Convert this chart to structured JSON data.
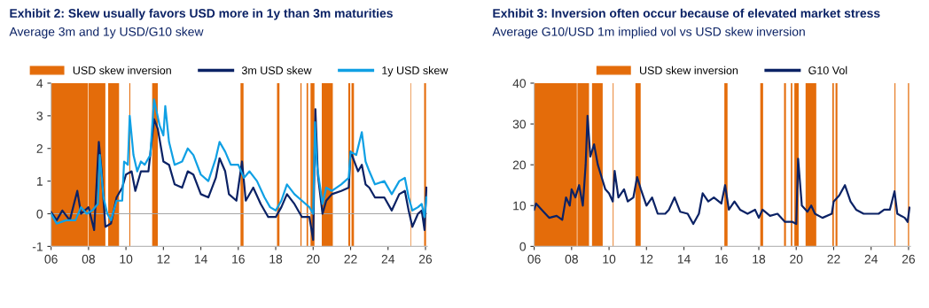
{
  "chart_data": [
    {
      "type": "line",
      "title": "Exhibit 2: Skew usually favors USD more in 1y than 3m maturities",
      "subtitle": "Average 3m and 1y USD/G10 skew",
      "xlim": [
        2006,
        2026.1
      ],
      "xticks": [
        {
          "value": 2006,
          "label": "06"
        },
        {
          "value": 2008,
          "label": "08"
        },
        {
          "value": 2010,
          "label": "10"
        },
        {
          "value": 2012,
          "label": "12"
        },
        {
          "value": 2014,
          "label": "14"
        },
        {
          "value": 2016,
          "label": "16"
        },
        {
          "value": 2018,
          "label": "18"
        },
        {
          "value": 2020,
          "label": "20"
        },
        {
          "value": 2022,
          "label": "22"
        },
        {
          "value": 2024,
          "label": "24"
        },
        {
          "value": 2026,
          "label": "26"
        }
      ],
      "ylim": [
        -1,
        4
      ],
      "yticks": [
        -1,
        0,
        1,
        2,
        3,
        4
      ],
      "grid": false,
      "legend": "top",
      "bands": [
        {
          "axis": "x",
          "from": 2006.0,
          "to": 2007.97,
          "label": "USD skew inversion",
          "color": "#e46c0a"
        },
        {
          "axis": "x",
          "from": 2008.0,
          "to": 2008.9,
          "color": "#e46c0a"
        },
        {
          "axis": "x",
          "from": 2009.05,
          "to": 2009.63,
          "color": "#e46c0a"
        },
        {
          "axis": "x",
          "from": 2010.18,
          "to": 2010.23,
          "color": "#e46c0a"
        },
        {
          "axis": "x",
          "from": 2011.4,
          "to": 2011.7,
          "color": "#e46c0a"
        },
        {
          "axis": "x",
          "from": 2016.12,
          "to": 2016.28,
          "color": "#e46c0a"
        },
        {
          "axis": "x",
          "from": 2018.07,
          "to": 2018.2,
          "color": "#e46c0a"
        },
        {
          "axis": "x",
          "from": 2019.32,
          "to": 2019.38,
          "color": "#e46c0a"
        },
        {
          "axis": "x",
          "from": 2019.65,
          "to": 2019.73,
          "color": "#e46c0a"
        },
        {
          "axis": "x",
          "from": 2019.86,
          "to": 2020.07,
          "color": "#e46c0a"
        },
        {
          "axis": "x",
          "from": 2020.46,
          "to": 2021.05,
          "color": "#e46c0a"
        },
        {
          "axis": "x",
          "from": 2021.88,
          "to": 2021.98,
          "color": "#e46c0a"
        },
        {
          "axis": "x",
          "from": 2022.05,
          "to": 2022.18,
          "color": "#e46c0a"
        },
        {
          "axis": "x",
          "from": 2025.2,
          "to": 2025.23,
          "color": "#e46c0a"
        },
        {
          "axis": "x",
          "from": 2025.93,
          "to": 2026.03,
          "color": "#e46c0a"
        }
      ],
      "ref_lines": [
        {
          "axis": "y",
          "value": 0,
          "color": "#a6a6a6"
        }
      ],
      "series": [
        {
          "name": "3m USD skew",
          "color": "#0b2265",
          "x": [
            2006.0,
            2006.3,
            2006.6,
            2007.0,
            2007.4,
            2007.6,
            2008.0,
            2008.3,
            2008.55,
            2008.7,
            2008.9,
            2009.2,
            2009.5,
            2009.8,
            2010.0,
            2010.3,
            2010.5,
            2010.8,
            2011.2,
            2011.5,
            2011.7,
            2012.0,
            2012.3,
            2012.6,
            2013.0,
            2013.3,
            2013.6,
            2014.0,
            2014.4,
            2014.8,
            2015.0,
            2015.3,
            2015.5,
            2015.9,
            2016.2,
            2016.4,
            2016.8,
            2017.2,
            2017.6,
            2018.0,
            2018.3,
            2018.6,
            2019.0,
            2019.4,
            2019.8,
            2020.0,
            2020.12,
            2020.25,
            2020.5,
            2020.7,
            2021.0,
            2021.5,
            2021.9,
            2022.0,
            2022.4,
            2022.6,
            2022.8,
            2023.0,
            2023.3,
            2023.8,
            2024.2,
            2024.6,
            2024.9,
            2025.1,
            2025.3,
            2025.6,
            2025.8,
            2025.95,
            2026.05
          ],
          "values": [
            0.05,
            -0.2,
            0.1,
            -0.2,
            0.7,
            0.0,
            0.2,
            -0.5,
            2.2,
            1.3,
            -0.4,
            -0.3,
            0.5,
            0.8,
            1.2,
            1.3,
            0.7,
            1.3,
            1.3,
            2.9,
            2.6,
            1.6,
            1.5,
            0.9,
            0.8,
            1.3,
            1.2,
            0.6,
            0.5,
            1.1,
            1.7,
            1.3,
            0.6,
            0.4,
            1.6,
            0.4,
            0.8,
            0.3,
            -0.1,
            -0.1,
            0.2,
            0.6,
            0.3,
            -0.1,
            -0.1,
            -0.8,
            3.2,
            1.2,
            0.0,
            0.4,
            0.6,
            0.7,
            0.8,
            1.9,
            1.3,
            1.5,
            0.9,
            0.8,
            0.5,
            0.5,
            0.1,
            0.6,
            0.7,
            0.1,
            -0.4,
            0.0,
            0.1,
            -0.5,
            0.8
          ]
        },
        {
          "name": "1y USD skew",
          "color": "#10a0e4",
          "x": [
            2006.0,
            2006.3,
            2006.8,
            2007.3,
            2007.6,
            2007.9,
            2008.2,
            2008.5,
            2008.6,
            2008.8,
            2009.0,
            2009.2,
            2009.5,
            2009.8,
            2009.9,
            2010.1,
            2010.2,
            2010.4,
            2010.6,
            2010.8,
            2011.0,
            2011.3,
            2011.5,
            2011.8,
            2012.0,
            2012.1,
            2012.3,
            2012.6,
            2013.0,
            2013.3,
            2013.6,
            2014.0,
            2014.4,
            2014.8,
            2015.0,
            2015.3,
            2015.6,
            2016.0,
            2016.3,
            2016.6,
            2017.0,
            2017.4,
            2017.7,
            2018.0,
            2018.3,
            2018.6,
            2019.0,
            2019.4,
            2019.8,
            2020.0,
            2020.1,
            2020.2,
            2020.5,
            2020.7,
            2021.0,
            2021.5,
            2021.9,
            2022.0,
            2022.3,
            2022.6,
            2022.8,
            2023.0,
            2023.3,
            2023.8,
            2024.2,
            2024.6,
            2024.9,
            2025.1,
            2025.3,
            2025.6,
            2025.8,
            2025.95,
            2026.05
          ],
          "values": [
            0.0,
            -0.3,
            -0.2,
            -0.2,
            0.2,
            0.0,
            0.1,
            0.3,
            1.8,
            0.5,
            0.0,
            -0.2,
            0.4,
            0.4,
            1.6,
            1.5,
            3.0,
            1.8,
            1.3,
            1.6,
            1.5,
            1.8,
            3.5,
            2.7,
            2.4,
            3.3,
            2.2,
            1.5,
            1.6,
            2.0,
            1.8,
            1.2,
            1.0,
            1.7,
            2.2,
            1.9,
            1.5,
            1.5,
            1.1,
            1.3,
            1.0,
            0.5,
            0.2,
            0.1,
            0.4,
            0.9,
            0.6,
            0.4,
            0.2,
            0.0,
            2.8,
            1.5,
            0.3,
            0.8,
            0.7,
            0.9,
            1.1,
            1.9,
            1.8,
            2.5,
            1.6,
            1.3,
            0.9,
            1.0,
            0.6,
            1.0,
            1.1,
            0.5,
            0.1,
            0.2,
            0.3,
            -0.1,
            0.5
          ]
        }
      ]
    },
    {
      "type": "line",
      "title": "Exhibit 3: Inversion often occur because of elevated market stress",
      "subtitle": "Average G10/USD 1m implied vol vs USD skew inversion",
      "xlim": [
        2006,
        2026.1
      ],
      "xticks": [
        {
          "value": 2006,
          "label": "06"
        },
        {
          "value": 2008,
          "label": "08"
        },
        {
          "value": 2010,
          "label": "10"
        },
        {
          "value": 2012,
          "label": "12"
        },
        {
          "value": 2014,
          "label": "14"
        },
        {
          "value": 2016,
          "label": "16"
        },
        {
          "value": 2018,
          "label": "18"
        },
        {
          "value": 2020,
          "label": "20"
        },
        {
          "value": 2022,
          "label": "22"
        },
        {
          "value": 2024,
          "label": "24"
        },
        {
          "value": 2026,
          "label": "26"
        }
      ],
      "ylim": [
        0,
        40
      ],
      "yticks": [
        0,
        10,
        20,
        30,
        40
      ],
      "grid": false,
      "legend": "top",
      "bands": [
        {
          "axis": "x",
          "from": 2006.0,
          "to": 2008.28,
          "label": "USD skew inversion",
          "color": "#e46c0a"
        },
        {
          "axis": "x",
          "from": 2008.31,
          "to": 2008.93,
          "color": "#e46c0a"
        },
        {
          "axis": "x",
          "from": 2009.09,
          "to": 2009.66,
          "color": "#e46c0a"
        },
        {
          "axis": "x",
          "from": 2010.2,
          "to": 2010.24,
          "color": "#e46c0a"
        },
        {
          "axis": "x",
          "from": 2011.41,
          "to": 2011.69,
          "color": "#e46c0a"
        },
        {
          "axis": "x",
          "from": 2016.16,
          "to": 2016.33,
          "color": "#e46c0a"
        },
        {
          "axis": "x",
          "from": 2018.08,
          "to": 2018.23,
          "color": "#e46c0a"
        },
        {
          "axis": "x",
          "from": 2019.35,
          "to": 2019.45,
          "color": "#e46c0a"
        },
        {
          "axis": "x",
          "from": 2019.71,
          "to": 2019.79,
          "color": "#e46c0a"
        },
        {
          "axis": "x",
          "from": 2019.9,
          "to": 2020.13,
          "color": "#e46c0a"
        },
        {
          "axis": "x",
          "from": 2020.5,
          "to": 2021.07,
          "color": "#e46c0a"
        },
        {
          "axis": "x",
          "from": 2021.93,
          "to": 2022.01,
          "color": "#e46c0a"
        },
        {
          "axis": "x",
          "from": 2022.1,
          "to": 2022.2,
          "color": "#e46c0a"
        },
        {
          "axis": "x",
          "from": 2025.25,
          "to": 2025.3,
          "color": "#e46c0a"
        },
        {
          "axis": "x",
          "from": 2025.97,
          "to": 2026.03,
          "color": "#e46c0a"
        }
      ],
      "series": [
        {
          "name": "G10 Vol",
          "color": "#0b2265",
          "x": [
            2006.0,
            2006.1,
            2006.5,
            2006.8,
            2007.2,
            2007.5,
            2007.7,
            2007.9,
            2008.0,
            2008.2,
            2008.4,
            2008.6,
            2008.75,
            2008.85,
            2009.0,
            2009.2,
            2009.4,
            2009.6,
            2009.8,
            2010.0,
            2010.2,
            2010.3,
            2010.5,
            2010.8,
            2011.0,
            2011.3,
            2011.5,
            2011.7,
            2012.0,
            2012.3,
            2012.6,
            2013.0,
            2013.2,
            2013.5,
            2013.8,
            2014.2,
            2014.5,
            2014.8,
            2015.0,
            2015.3,
            2015.6,
            2016.0,
            2016.2,
            2016.4,
            2016.7,
            2017.0,
            2017.4,
            2017.8,
            2018.0,
            2018.2,
            2018.6,
            2019.0,
            2019.4,
            2019.8,
            2020.0,
            2020.1,
            2020.3,
            2020.6,
            2020.8,
            2021.0,
            2021.4,
            2021.9,
            2022.0,
            2022.3,
            2022.6,
            2022.9,
            2023.2,
            2023.6,
            2024.0,
            2024.4,
            2024.7,
            2025.0,
            2025.25,
            2025.4,
            2025.8,
            2025.95,
            2026.05
          ],
          "values": [
            9,
            10.5,
            8.5,
            7,
            7.5,
            6.5,
            12,
            10,
            14,
            12,
            15,
            10,
            20,
            32,
            22,
            25,
            20,
            17,
            14,
            13,
            11,
            18.5,
            12,
            14,
            11,
            12,
            17,
            14,
            10,
            12,
            8,
            8,
            9,
            12,
            8.5,
            8,
            5.5,
            8,
            13,
            11,
            12,
            10.5,
            15,
            9,
            11,
            9,
            8,
            9,
            7,
            9,
            7.5,
            8,
            6,
            6,
            5.5,
            21.5,
            10,
            8.5,
            10,
            8,
            7,
            8,
            11,
            12.5,
            15,
            11,
            9,
            8,
            8,
            8,
            9,
            9,
            13.5,
            8,
            7,
            6,
            9.5
          ]
        }
      ]
    }
  ]
}
